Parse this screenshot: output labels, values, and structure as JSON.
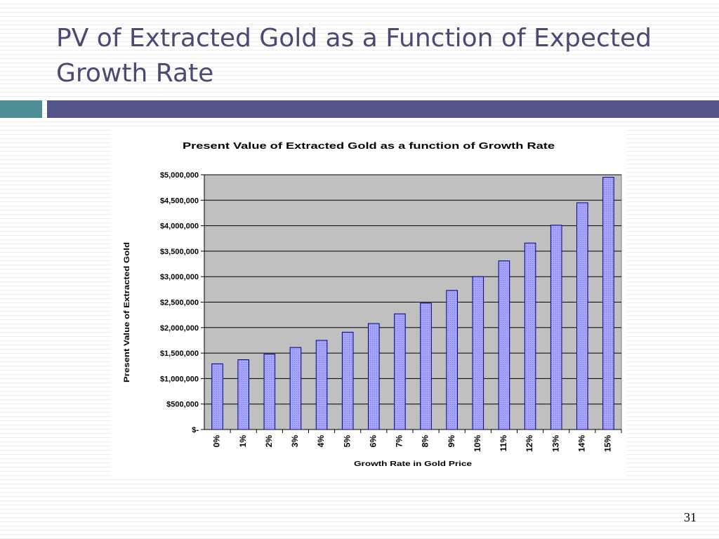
{
  "slide": {
    "title": "PV of Extracted Gold as a Function of Expected Growth Rate",
    "page_number": "31"
  },
  "colors": {
    "accent_teal": "#4e8f95",
    "accent_indigo": "#53548c",
    "title_text": "#4a4a72",
    "plot_bg": "#c0c0c0",
    "bar_fill": "#9999ff",
    "bar_edge": "#000080"
  },
  "chart_data": {
    "type": "bar",
    "title": "Present Value of Extracted Gold as a function of Growth Rate",
    "xlabel": "Growth Rate in Gold Price",
    "ylabel": "Present Value of Extracted Gold",
    "categories": [
      "0%",
      "1%",
      "2%",
      "3%",
      "4%",
      "5%",
      "6%",
      "7%",
      "8%",
      "9%",
      "10%",
      "11%",
      "12%",
      "13%",
      "14%",
      "15%"
    ],
    "values": [
      1290000,
      1370000,
      1480000,
      1610000,
      1750000,
      1910000,
      2080000,
      2270000,
      2480000,
      2730000,
      3000000,
      3310000,
      3660000,
      4010000,
      4450000,
      4950000
    ],
    "ylim": [
      0,
      5000000
    ],
    "yticks": [
      0,
      500000,
      1000000,
      1500000,
      2000000,
      2500000,
      3000000,
      3500000,
      4000000,
      4500000,
      5000000
    ],
    "ytick_labels": [
      "$-",
      "$500,000",
      "$1,000,000",
      "$1,500,000",
      "$2,000,000",
      "$2,500,000",
      "$3,000,000",
      "$3,500,000",
      "$4,000,000",
      "$4,500,000",
      "$5,000,000"
    ],
    "grid": true,
    "legend": false
  }
}
